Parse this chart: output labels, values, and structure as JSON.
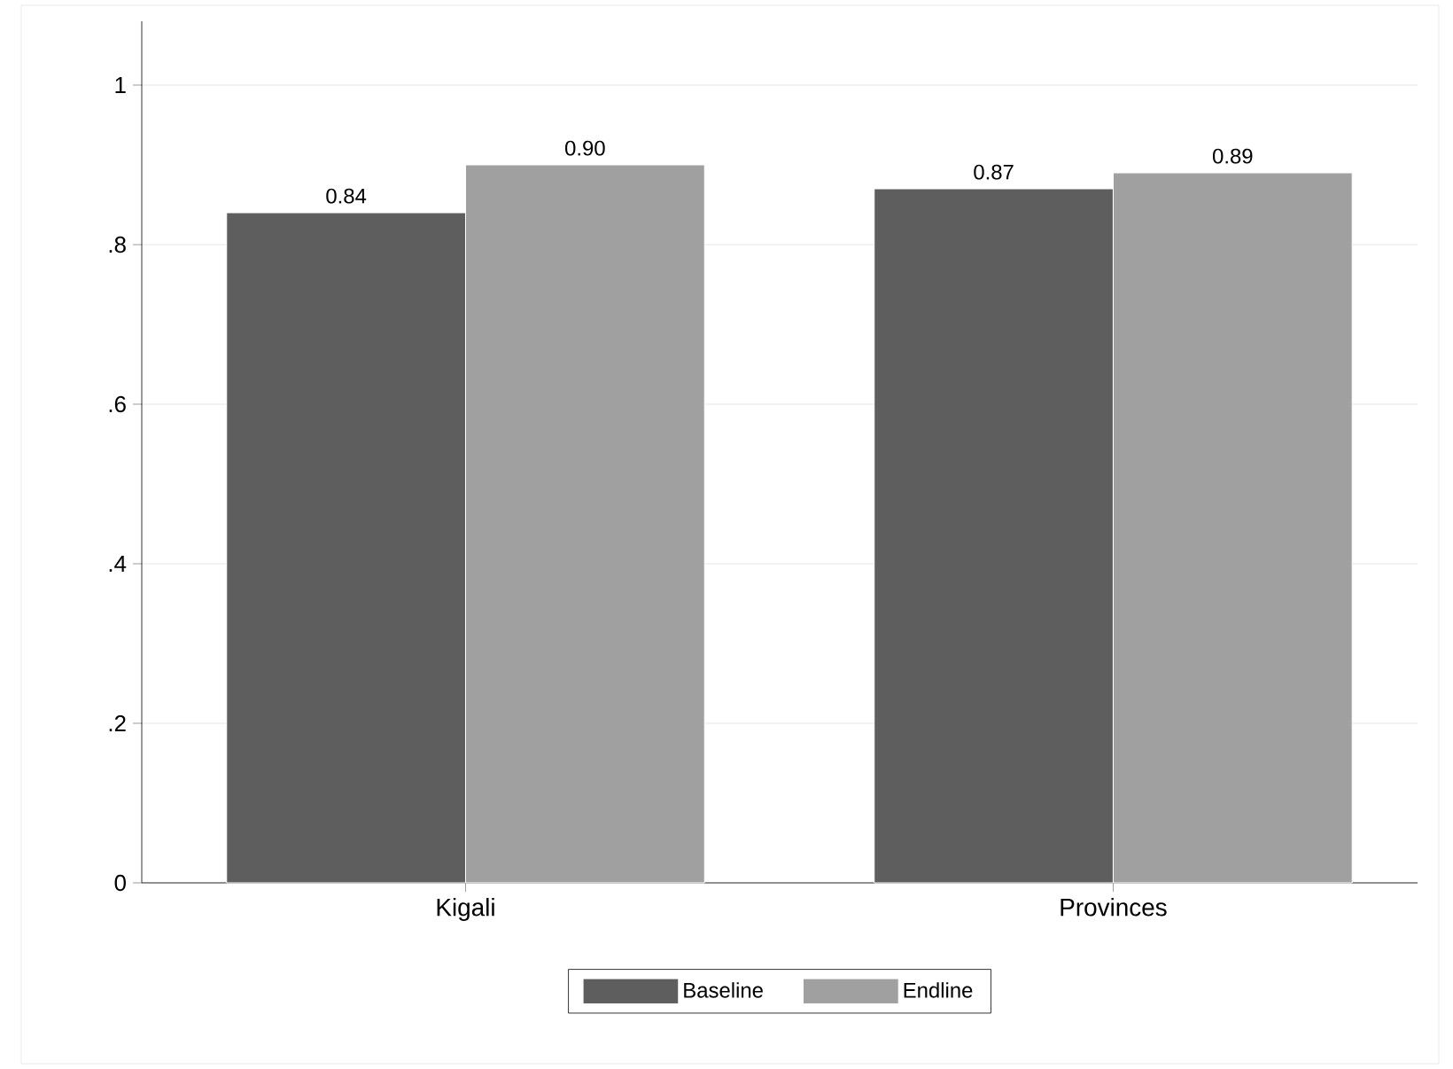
{
  "chart_data": {
    "type": "bar",
    "categories": [
      "Kigali",
      "Provinces"
    ],
    "series": [
      {
        "name": "Baseline",
        "color": "#5e5e5e",
        "values": [
          0.84,
          0.87
        ],
        "value_labels": [
          "0.84",
          "0.87"
        ]
      },
      {
        "name": "Endline",
        "color": "#a0a0a0",
        "values": [
          0.9,
          0.89
        ],
        "value_labels": [
          "0.90",
          "0.89"
        ]
      }
    ],
    "ylim": [
      0,
      1.08
    ],
    "yticks": [
      0,
      {
        "value": 0.2,
        "label": ".2"
      },
      {
        "value": 0.4,
        "label": ".4"
      },
      {
        "value": 0.6,
        "label": ".6"
      },
      {
        "value": 0.8,
        "label": ".8"
      },
      1
    ],
    "grid": "y",
    "legend": "bottom"
  }
}
